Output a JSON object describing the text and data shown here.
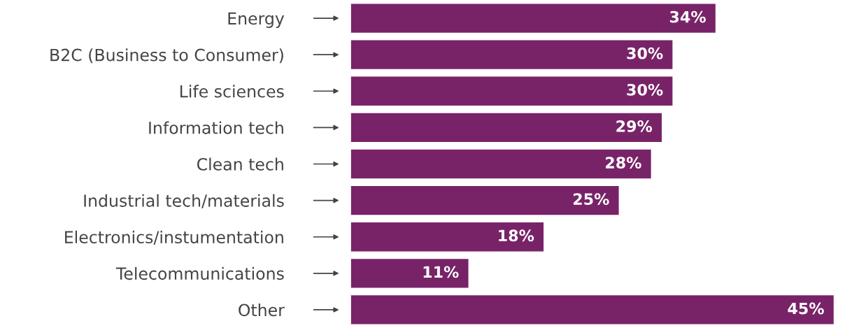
{
  "chart_data": {
    "type": "bar",
    "orientation": "horizontal",
    "categories": [
      "Energy",
      "B2C (Business to Consumer)",
      "Life sciences",
      "Information tech",
      "Clean tech",
      "Industrial tech/materials",
      "Electronics/instumentation",
      "Telecommunications",
      "Other"
    ],
    "values": [
      34,
      30,
      30,
      29,
      28,
      25,
      18,
      11,
      45
    ],
    "value_labels": [
      "34%",
      "30%",
      "30%",
      "29%",
      "28%",
      "25%",
      "18%",
      "11%",
      "45%"
    ],
    "color": "#782368",
    "grid": false,
    "legend": false
  }
}
